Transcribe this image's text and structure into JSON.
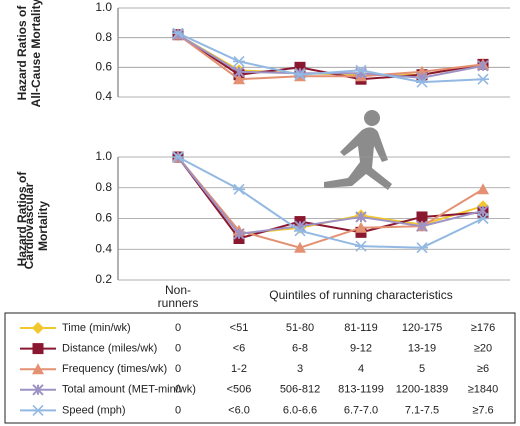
{
  "chart_data": [
    {
      "type": "line",
      "ylabel": [
        "Hazard Ratios of",
        "All-Cause Mortality"
      ],
      "categories": [
        "Non-runners",
        null,
        null,
        null,
        null,
        null
      ],
      "ylim": [
        0.4,
        1.0
      ],
      "yticks": [
        0.4,
        0.6,
        0.8,
        {
          "value": 1.0,
          "label": "1.0"
        }
      ],
      "grid": true,
      "series": [
        {
          "name": "Time (min/wk)",
          "color": "#f2c82e",
          "marker": "diamond",
          "values": [
            0.82,
            0.58,
            0.56,
            0.55,
            0.55,
            0.62
          ]
        },
        {
          "name": "Distance (miles/wk)",
          "color": "#8a1730",
          "marker": "square",
          "values": [
            0.82,
            0.55,
            0.6,
            0.52,
            0.55,
            0.62
          ]
        },
        {
          "name": "Frequency (times/wk)",
          "color": "#e39172",
          "marker": "triangle",
          "values": [
            0.82,
            0.52,
            0.54,
            0.54,
            0.57,
            0.62
          ]
        },
        {
          "name": "Total amount (MET-min/wk)",
          "color": "#9e93c4",
          "marker": "x",
          "values": [
            0.82,
            0.57,
            0.56,
            0.56,
            0.53,
            0.61
          ]
        },
        {
          "name": "Speed (mph)",
          "color": "#93b9e3",
          "marker": "asterisk",
          "values": [
            0.83,
            0.64,
            0.55,
            0.58,
            0.5,
            0.52
          ]
        }
      ]
    },
    {
      "type": "line",
      "ylabel": [
        "Hazard Ratios of",
        "Cardiovascular Mortality"
      ],
      "xlabel": "Quintiles of running characteristics",
      "ylim": [
        0.2,
        1.0
      ],
      "yticks": [
        0.2,
        0.4,
        0.6,
        0.8,
        {
          "value": 1.0,
          "label": "1.0"
        }
      ],
      "grid": true,
      "series": [
        {
          "color": "#f2c82e",
          "marker": "diamond",
          "values": [
            1.0,
            0.5,
            0.54,
            0.62,
            0.56,
            0.68
          ]
        },
        {
          "color": "#8a1730",
          "marker": "square",
          "values": [
            1.0,
            0.47,
            0.58,
            0.51,
            0.61,
            0.64
          ]
        },
        {
          "color": "#e39172",
          "marker": "triangle",
          "values": [
            1.0,
            0.52,
            0.41,
            0.54,
            0.55,
            0.79
          ]
        },
        {
          "color": "#9e93c4",
          "marker": "x",
          "values": [
            1.0,
            0.5,
            0.55,
            0.61,
            0.55,
            0.65
          ]
        },
        {
          "color": "#93b9e3",
          "marker": "asterisk",
          "values": [
            1.0,
            0.79,
            0.52,
            0.42,
            0.41,
            0.6
          ]
        }
      ]
    }
  ],
  "table": {
    "rows": [
      [
        "0",
        "<51",
        "51-80",
        "81-119",
        "120-175",
        "≥176"
      ],
      [
        "0",
        "<6",
        "6-8",
        "9-12",
        "13-19",
        "≥20"
      ],
      [
        "0",
        "1-2",
        "3",
        "4",
        "5",
        "≥6"
      ],
      [
        "0",
        "<506",
        "506-812",
        "813-1199",
        "1200-1839",
        "≥1840"
      ],
      [
        "0",
        "<6.0",
        "6.0-6.6",
        "6.7-7.0",
        "7.1-7.5",
        "≥7.6"
      ]
    ]
  }
}
